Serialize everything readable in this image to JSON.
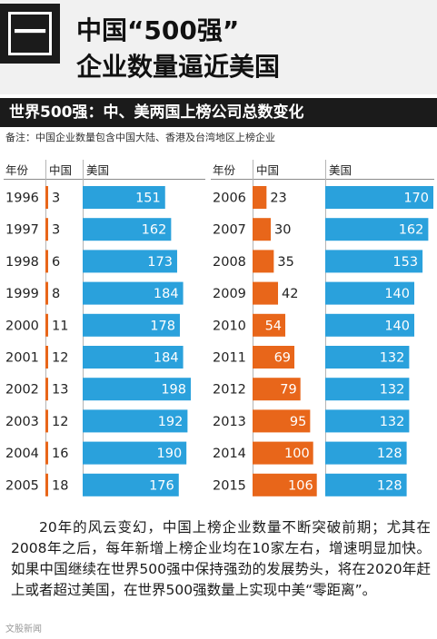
{
  "header": {
    "number": "一",
    "title_line1": "中国“500强”",
    "title_line2": "企业数量逼近美国"
  },
  "banner": "世界500强：中、美两国上榜公司总数变化",
  "note": "备注：中国企业数量包含中国大陆、香港及台湾地区上榜企业",
  "columns": {
    "year": "年份",
    "china": "中国",
    "usa": "美国"
  },
  "colors": {
    "china": "#e8661a",
    "usa": "#2aa1dc",
    "header_bg": "#f1f1f1",
    "banner_bg": "#1b1b1b"
  },
  "chart_data": {
    "type": "bar",
    "orientation": "horizontal",
    "title": "世界500强：中、美两国上榜公司总数变化",
    "categories": [
      "1996",
      "1997",
      "1998",
      "1999",
      "2000",
      "2001",
      "2002",
      "2003",
      "2004",
      "2005",
      "2006",
      "2007",
      "2008",
      "2009",
      "2010",
      "2011",
      "2012",
      "2013",
      "2014",
      "2015"
    ],
    "series": [
      {
        "name": "中国",
        "values": [
          3,
          3,
          6,
          8,
          11,
          12,
          13,
          12,
          16,
          18,
          23,
          30,
          35,
          42,
          54,
          69,
          79,
          95,
          100,
          106
        ]
      },
      {
        "name": "美国",
        "values": [
          151,
          162,
          173,
          184,
          178,
          184,
          198,
          192,
          190,
          176,
          170,
          162,
          153,
          140,
          140,
          132,
          132,
          132,
          128,
          128
        ]
      }
    ]
  },
  "summary": "20年的风云变幻，中国上榜企业数量不断突破前期；尤其在2008年之后，每年新增上榜企业均在10家左右，增速明显加快。如果中国继续在世界500强中保持强劲的发展势头，将在2020年赶上或者超过美国，在世界500强数量上实现中美“零距离”。",
  "watermark": "文股新闻"
}
